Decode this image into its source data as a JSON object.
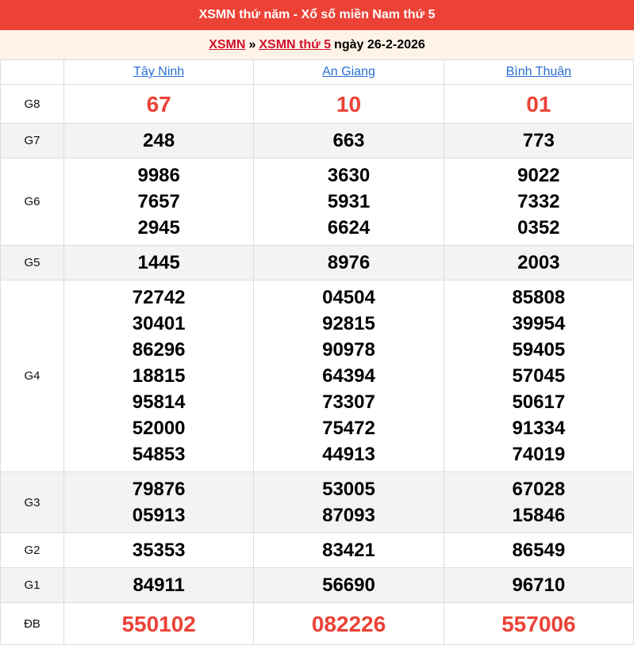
{
  "header": {
    "title": "XSMN thứ năm - Xổ số miền Nam thứ 5"
  },
  "breadcrumb": {
    "link1": "XSMN",
    "sep": "»",
    "link2": "XSMN thứ 5",
    "date": "ngày 26-2-2026"
  },
  "provinces": [
    "Tây Ninh",
    "An Giang",
    "Bình Thuận"
  ],
  "colors": {
    "header_bg": "#ec4236",
    "highlight": "#ec4236",
    "link": "#2a6fd6"
  },
  "prizes": [
    {
      "label": "G8",
      "highlight": true,
      "results": [
        [
          "67"
        ],
        [
          "10"
        ],
        [
          "01"
        ]
      ]
    },
    {
      "label": "G7",
      "results": [
        [
          "248"
        ],
        [
          "663"
        ],
        [
          "773"
        ]
      ]
    },
    {
      "label": "G6",
      "results": [
        [
          "9986",
          "7657",
          "2945"
        ],
        [
          "3630",
          "5931",
          "6624"
        ],
        [
          "9022",
          "7332",
          "0352"
        ]
      ]
    },
    {
      "label": "G5",
      "results": [
        [
          "1445"
        ],
        [
          "8976"
        ],
        [
          "2003"
        ]
      ]
    },
    {
      "label": "G4",
      "results": [
        [
          "72742",
          "30401",
          "86296",
          "18815",
          "95814",
          "52000",
          "54853"
        ],
        [
          "04504",
          "92815",
          "90978",
          "64394",
          "73307",
          "75472",
          "44913"
        ],
        [
          "85808",
          "39954",
          "59405",
          "57045",
          "50617",
          "91334",
          "74019"
        ]
      ]
    },
    {
      "label": "G3",
      "results": [
        [
          "79876",
          "05913"
        ],
        [
          "53005",
          "87093"
        ],
        [
          "67028",
          "15846"
        ]
      ]
    },
    {
      "label": "G2",
      "results": [
        [
          "35353"
        ],
        [
          "83421"
        ],
        [
          "86549"
        ]
      ]
    },
    {
      "label": "G1",
      "results": [
        [
          "84911"
        ],
        [
          "56690"
        ],
        [
          "96710"
        ]
      ]
    },
    {
      "label": "ĐB",
      "highlight": true,
      "results": [
        [
          "550102"
        ],
        [
          "082226"
        ],
        [
          "557006"
        ]
      ]
    }
  ]
}
